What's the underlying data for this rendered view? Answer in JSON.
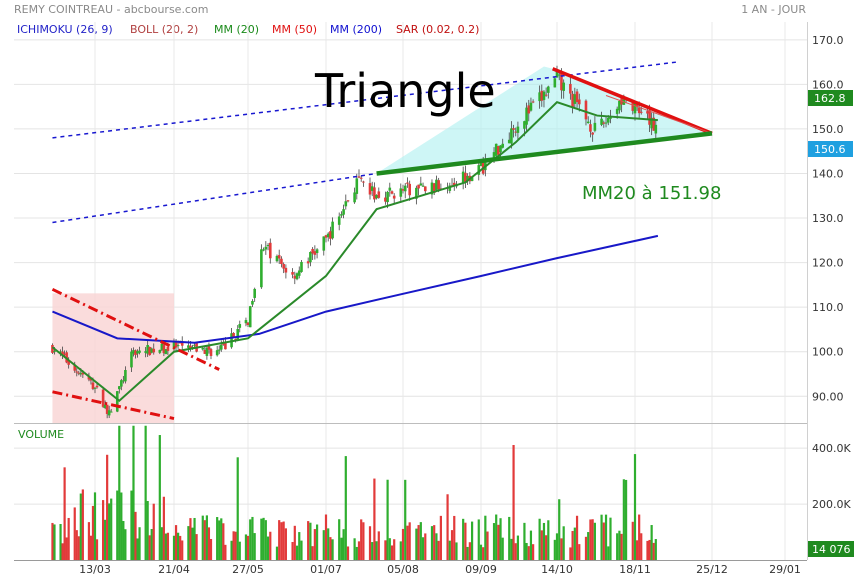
{
  "header": {
    "instrument": "REMY COINTREAU - abcbourse.com",
    "period": "1 AN - JOUR",
    "indicators": [
      {
        "label": "ICHIMOKU (26, 9)",
        "color": "#2323c8"
      },
      {
        "label": "BOLL (20, 2)",
        "color": "#b04040"
      },
      {
        "label": "MM (20)",
        "color": "#1a8a1a"
      },
      {
        "label": "MM (50)",
        "color": "#e01010"
      },
      {
        "label": "MM (200)",
        "color": "#1010d0"
      },
      {
        "label": "SAR (0.02, 0.2)",
        "color": "#c01010"
      }
    ]
  },
  "chart_data": {
    "type": "candlestick",
    "price_axis": {
      "min": 84,
      "max": 174,
      "ticks": [
        "90.00",
        "100.0",
        "110.0",
        "120.0",
        "130.0",
        "140.0",
        "150.0",
        "160.0",
        "170.0"
      ]
    },
    "x_ticks": [
      "13/03",
      "21/04",
      "27/05",
      "01/07",
      "05/08",
      "09/09",
      "14/10",
      "18/11",
      "25/12",
      "29/01"
    ],
    "x_tick_dates": [
      "2025-03-13",
      "2025-04-21",
      "2025-05-27",
      "2025-07-01",
      "2025-08-05",
      "2025-09-09",
      "2025-10-14",
      "2025-11-18",
      "2025-12-25",
      "2026-01-29"
    ],
    "start_date": "2025-02-20",
    "end_date": "2025-11-29",
    "price_points": [
      {
        "date": "2025-02-20",
        "close": 101
      },
      {
        "date": "2025-03-13",
        "close": 92
      },
      {
        "date": "2025-03-20",
        "close": 86
      },
      {
        "date": "2025-04-01",
        "close": 100
      },
      {
        "date": "2025-04-21",
        "close": 101
      },
      {
        "date": "2025-05-13",
        "close": 100
      },
      {
        "date": "2025-05-27",
        "close": 107
      },
      {
        "date": "2025-06-02",
        "close": 124
      },
      {
        "date": "2025-06-16",
        "close": 117
      },
      {
        "date": "2025-07-01",
        "close": 125
      },
      {
        "date": "2025-07-15",
        "close": 138
      },
      {
        "date": "2025-07-24",
        "close": 135
      },
      {
        "date": "2025-08-05",
        "close": 136
      },
      {
        "date": "2025-08-20",
        "close": 137
      },
      {
        "date": "2025-09-09",
        "close": 141
      },
      {
        "date": "2025-09-25",
        "close": 151
      },
      {
        "date": "2025-10-07",
        "close": 157
      },
      {
        "date": "2025-10-14",
        "close": 161
      },
      {
        "date": "2025-10-22",
        "close": 156
      },
      {
        "date": "2025-11-01",
        "close": 149
      },
      {
        "date": "2025-11-12",
        "close": 157
      },
      {
        "date": "2025-11-22",
        "close": 152
      },
      {
        "date": "2025-11-29",
        "close": 150.6
      }
    ],
    "overlays": {
      "ma20": [
        {
          "date": "2025-02-20",
          "value": 101
        },
        {
          "date": "2025-03-25",
          "value": 89
        },
        {
          "date": "2025-04-21",
          "value": 100
        },
        {
          "date": "2025-05-27",
          "value": 103
        },
        {
          "date": "2025-06-16",
          "value": 111
        },
        {
          "date": "2025-07-01",
          "value": 117
        },
        {
          "date": "2025-07-24",
          "value": 132
        },
        {
          "date": "2025-09-02",
          "value": 138
        },
        {
          "date": "2025-09-25",
          "value": 147
        },
        {
          "date": "2025-10-14",
          "value": 156
        },
        {
          "date": "2025-11-01",
          "value": 153
        },
        {
          "date": "2025-11-29",
          "value": 151.98
        }
      ],
      "ma200": [
        {
          "date": "2025-02-20",
          "value": 109
        },
        {
          "date": "2025-03-24",
          "value": 103
        },
        {
          "date": "2025-05-01",
          "value": 102
        },
        {
          "date": "2025-06-01",
          "value": 104
        },
        {
          "date": "2025-07-01",
          "value": 109
        },
        {
          "date": "2025-08-05",
          "value": 113
        },
        {
          "date": "2025-09-09",
          "value": 117
        },
        {
          "date": "2025-10-14",
          "value": 121
        },
        {
          "date": "2025-11-29",
          "value": 126
        }
      ],
      "upper_channel": [
        {
          "date": "2025-02-20",
          "value": 148
        },
        {
          "date": "2025-12-08",
          "value": 165
        }
      ],
      "lower_channel": [
        {
          "date": "2025-02-20",
          "value": 129
        },
        {
          "date": "2025-07-24",
          "value": 140
        }
      ],
      "triangle_resistance": [
        {
          "date": "2025-10-12",
          "value": 163.5
        },
        {
          "date": "2025-12-25",
          "value": 149
        }
      ],
      "triangle_support": [
        {
          "date": "2025-07-24",
          "value": 140
        },
        {
          "date": "2025-12-25",
          "value": 149
        }
      ],
      "down_channel_upper": [
        {
          "date": "2025-02-20",
          "value": 114
        },
        {
          "date": "2025-05-13",
          "value": 96
        }
      ],
      "down_channel_lower": [
        {
          "date": "2025-02-20",
          "value": 91
        },
        {
          "date": "2025-04-21",
          "value": 85
        }
      ]
    },
    "last_price": "150.6",
    "high_marker": "162.8",
    "annotations": {
      "title": "Triangle",
      "ma_note": "MM20 à 151.98"
    },
    "volume": {
      "label": "VOLUME",
      "axis_ticks": [
        "400.0K",
        "200.0K"
      ],
      "axis_values": [
        400000,
        200000
      ],
      "axis_max": 490000,
      "last_value": "14 076"
    }
  }
}
